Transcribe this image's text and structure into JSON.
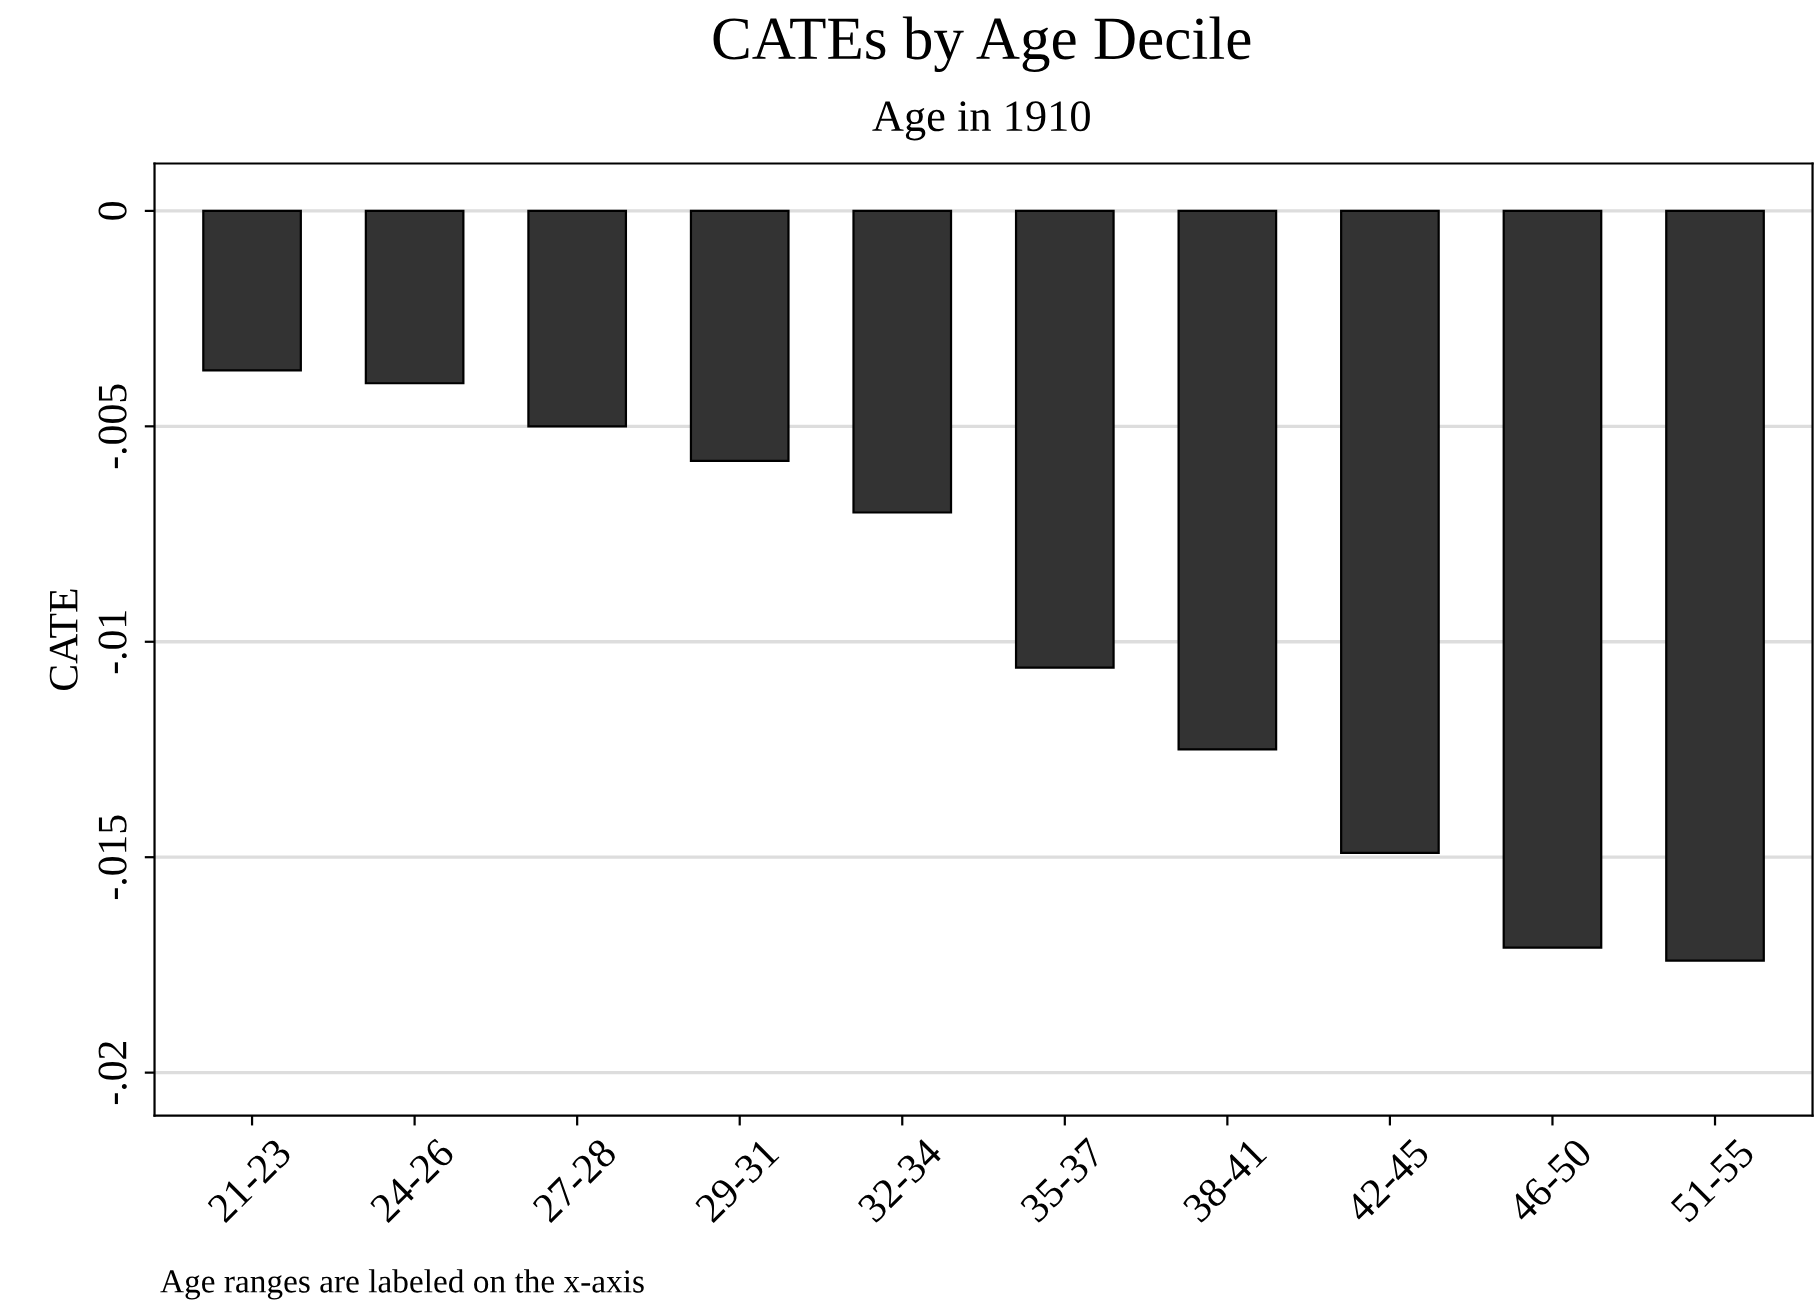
{
  "chart_data": {
    "type": "bar",
    "title": "CATEs by Age Decile",
    "subtitle": "Age in 1910",
    "ylabel": "CATE",
    "categories": [
      "21-23",
      "24-26",
      "27-28",
      "29-31",
      "32-34",
      "35-37",
      "38-41",
      "42-45",
      "46-50",
      "51-55"
    ],
    "series": [
      {
        "color": "#333333",
        "values": [
          -0.0037,
          -0.004,
          -0.005,
          -0.0058,
          -0.007,
          -0.0106,
          -0.0125,
          -0.0149,
          -0.0171,
          -0.0174
        ]
      }
    ],
    "ylim": [
      -0.021,
      0.0011
    ],
    "yticks": [
      {
        "value": 0,
        "label": "0"
      },
      {
        "value": -0.005,
        "label": "-.005"
      },
      {
        "value": -0.01,
        "label": "-.01"
      },
      {
        "value": -0.015,
        "label": "-.015"
      },
      {
        "value": -0.02,
        "label": "-.02"
      }
    ],
    "grid": "y",
    "legend": false,
    "annotations": [
      "Age ranges are labeled on the x-axis"
    ]
  }
}
